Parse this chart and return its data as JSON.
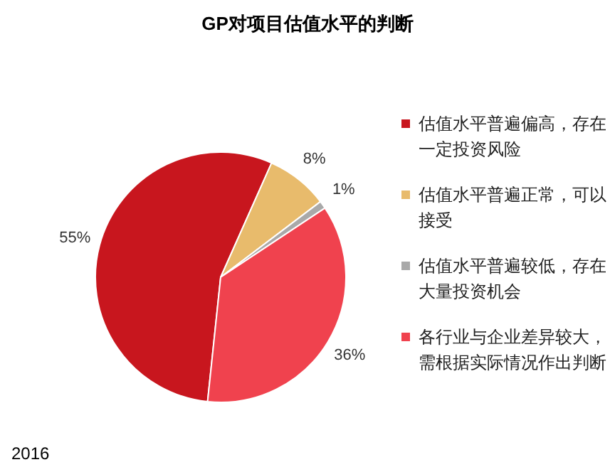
{
  "chart_data": {
    "type": "pie",
    "title": "GP对项目估值水平的判断",
    "categories": [
      "估值水平普遍偏高，存在一定投资风险",
      "估值水平普遍正常，可以接受",
      "估值水平普遍较低，存在大量投资机会",
      "各行业与企业差异较大，需根据实际情况作出判断"
    ],
    "values": [
      55,
      8,
      1,
      36
    ],
    "colors": [
      "#c8161e",
      "#e8bb6c",
      "#a9a9a9",
      "#f0424e"
    ],
    "value_labels": [
      "55%",
      "8%",
      "1%",
      "36%"
    ],
    "legend": "right",
    "annotations": [
      "2016"
    ]
  }
}
